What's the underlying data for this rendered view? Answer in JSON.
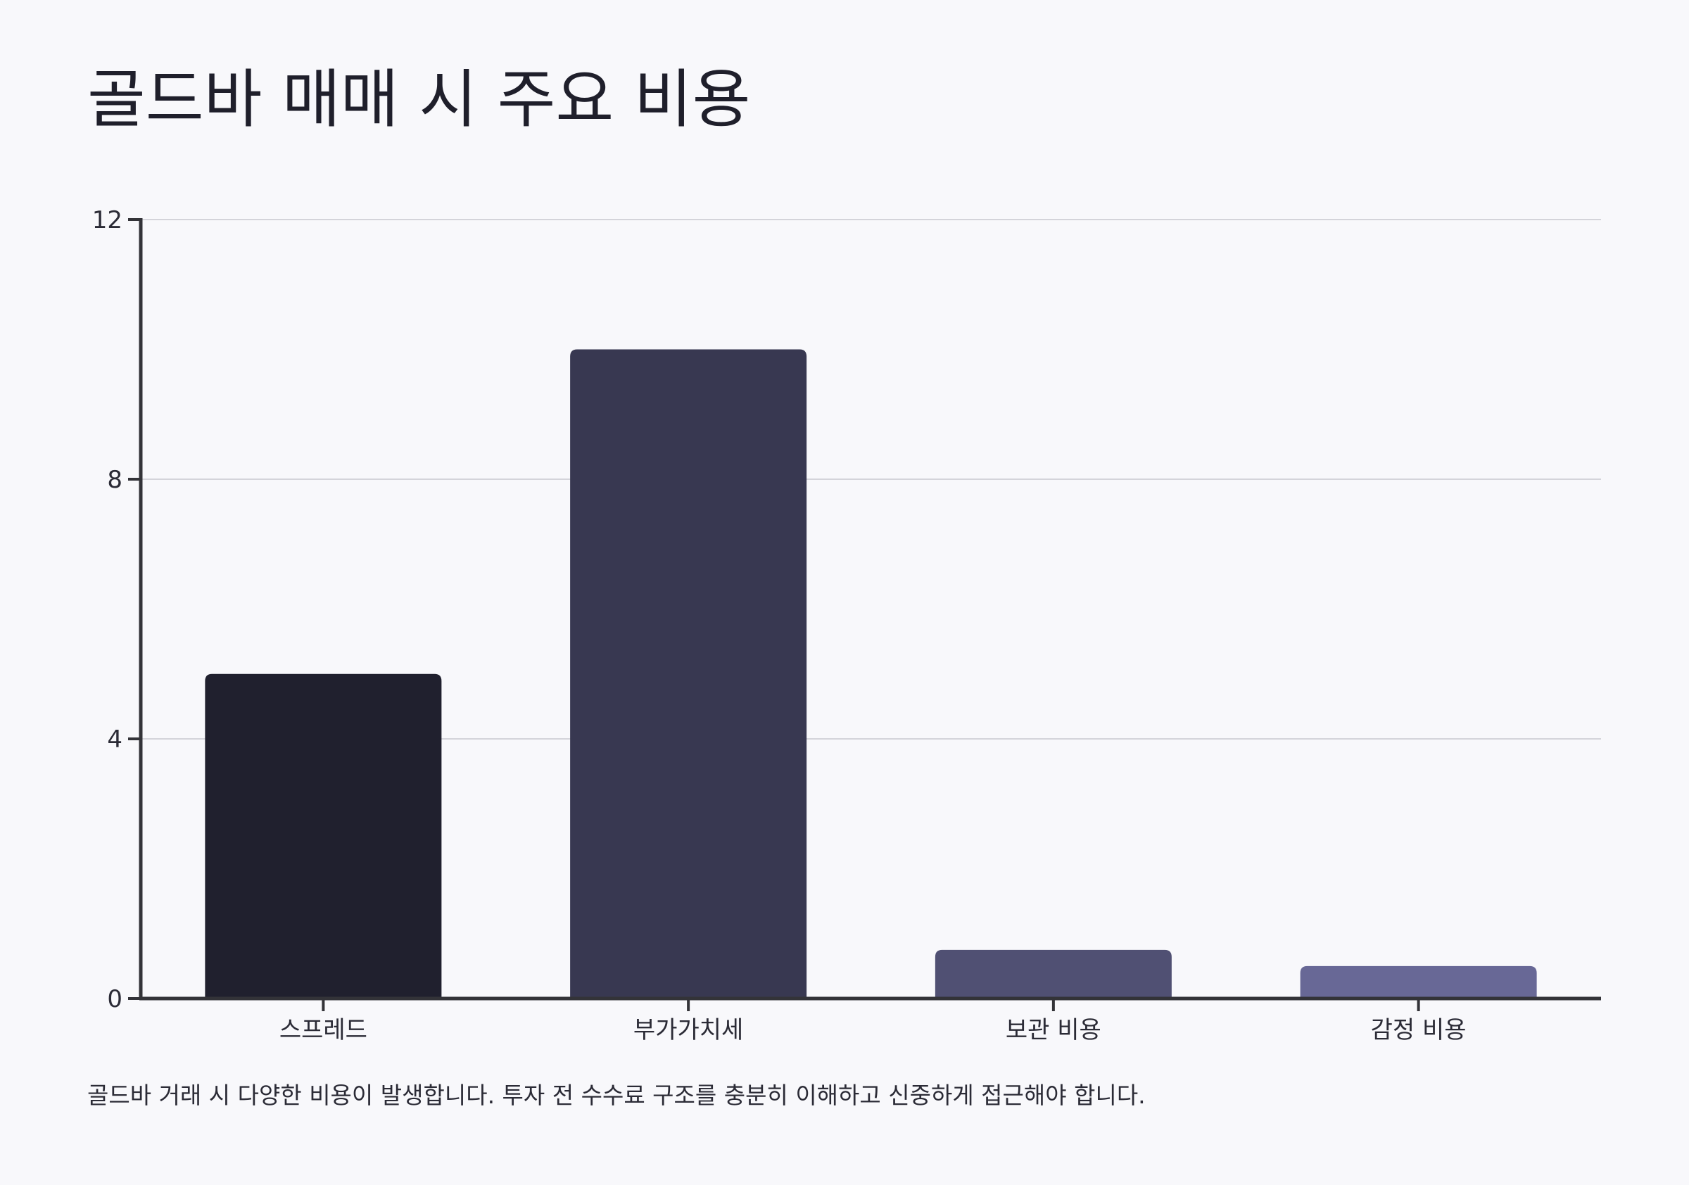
{
  "title": "골드바 매매 시 주요 비용",
  "caption": "골드바 거래 시 다양한 비용이 발생합니다. 투자 전 수수료 구조를 충분히 이해하고 신중하게 접근해야 합니다.",
  "chart_data": {
    "type": "bar",
    "title": "골드바 매매 시 주요 비용",
    "xlabel": "",
    "ylabel": "",
    "categories": [
      "스프레드",
      "부가가치세",
      "보관 비용",
      "감정 비용"
    ],
    "values": [
      5,
      10,
      0.75,
      0.5
    ],
    "colors": [
      "#20202e",
      "#383851",
      "#505073",
      "#686896"
    ],
    "ylim": [
      0,
      12
    ],
    "yticks": [
      0,
      4,
      8,
      12
    ],
    "grid": true,
    "legend": "none"
  }
}
